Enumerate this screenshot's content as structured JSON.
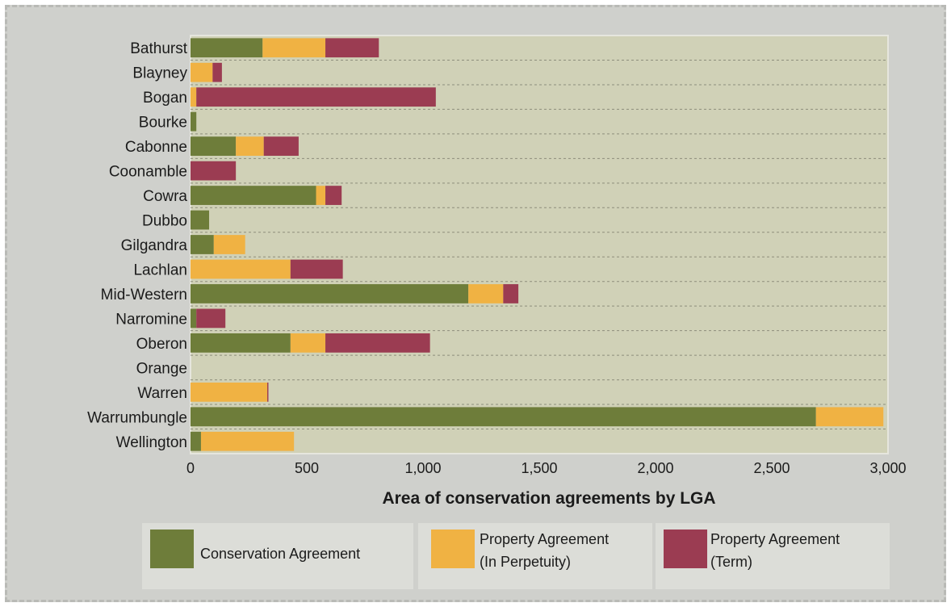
{
  "chart_data": {
    "type": "bar",
    "orientation": "horizontal",
    "stacked": true,
    "xlabel": "Area of conservation agreements by LGA",
    "xlim": [
      0,
      3000
    ],
    "xticks": [
      0,
      500,
      1000,
      1500,
      2000,
      2500,
      3000
    ],
    "xtick_labels": [
      "0",
      "500",
      "1,000",
      "1,500",
      "2,000",
      "2,500",
      "3,000"
    ],
    "grid": "horizontal dashed",
    "categories": [
      "Bathurst",
      "Blayney",
      "Bogan",
      "Bourke",
      "Cabonne",
      "Coonamble",
      "Cowra",
      "Dubbo",
      "Gilgandra",
      "Lachlan",
      "Mid-Western",
      "Narromine",
      "Oberon",
      "Orange",
      "Warren",
      "Warrumbungle",
      "Wellington"
    ],
    "series": [
      {
        "name": "Conservation Agreement",
        "color": "#6e7d3a",
        "values": [
          310,
          0,
          0,
          25,
          195,
          0,
          540,
          80,
          100,
          0,
          1195,
          25,
          430,
          0,
          0,
          2690,
          45
        ]
      },
      {
        "name": "Property Agreement (In Perpetuity)",
        "color": "#f0b243",
        "values": [
          270,
          95,
          25,
          0,
          120,
          0,
          40,
          0,
          135,
          430,
          150,
          0,
          150,
          0,
          330,
          290,
          400
        ]
      },
      {
        "name": "Property Agreement (Term)",
        "color": "#9b3c52",
        "values": [
          230,
          40,
          1030,
          0,
          150,
          195,
          70,
          0,
          0,
          225,
          65,
          125,
          450,
          0,
          5,
          0,
          0
        ]
      }
    ],
    "legend": {
      "position": "bottom",
      "items": [
        {
          "line1": "Conservation Agreement",
          "line2": ""
        },
        {
          "line1": "Property Agreement",
          "line2": "(In Perpetuity)"
        },
        {
          "line1": "Property Agreement",
          "line2": "(Term)"
        }
      ]
    },
    "plot_background": "#d0d1b7"
  }
}
